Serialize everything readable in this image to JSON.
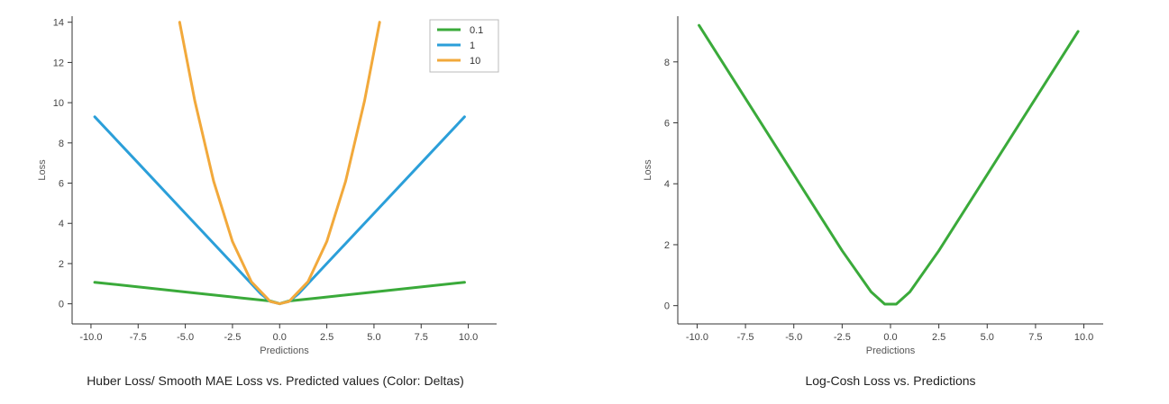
{
  "chart_data": [
    {
      "type": "line",
      "caption": "Huber Loss/ Smooth MAE Loss vs. Predicted values (Color: Deltas)",
      "xlabel": "Predictions",
      "ylabel": "Loss",
      "xlim": [
        -11.0,
        11.5
      ],
      "ylim": [
        -1.0,
        14.3
      ],
      "xticks": [
        -10.0,
        -7.5,
        -5.0,
        -2.5,
        0.0,
        2.5,
        5.0,
        7.5,
        10.0
      ],
      "xtick_labels": [
        "-10.0",
        "-7.5",
        "-5.0",
        "-2.5",
        "0.0",
        "2.5",
        "5.0",
        "7.5",
        "10.0"
      ],
      "yticks": [
        0,
        2,
        4,
        6,
        8,
        10,
        12,
        14
      ],
      "ytick_labels": [
        "0",
        "2",
        "4",
        "6",
        "8",
        "10",
        "12",
        "14"
      ],
      "grid": false,
      "legend": "top-right",
      "legend_entries": [
        "0.1",
        "1",
        "10"
      ],
      "series": [
        {
          "name": "0.1",
          "color": "#3aaa3a",
          "x": [
            -9.8,
            -5.0,
            -2.0,
            -0.5,
            -0.1,
            0.0,
            0.1,
            0.5,
            2.0,
            5.0,
            9.8
          ],
          "y": [
            1.07,
            0.59,
            0.29,
            0.14,
            0.04,
            0.0,
            0.04,
            0.14,
            0.29,
            0.59,
            1.07
          ]
        },
        {
          "name": "1",
          "color": "#2b9fd9",
          "x": [
            -9.8,
            -7.5,
            -5.0,
            -2.5,
            -1.0,
            -0.5,
            0.0,
            0.5,
            1.0,
            2.5,
            5.0,
            7.5,
            9.8
          ],
          "y": [
            9.3,
            7.0,
            4.5,
            2.0,
            0.5,
            0.12,
            0.0,
            0.12,
            0.5,
            2.0,
            4.5,
            7.0,
            9.3
          ]
        },
        {
          "name": "10",
          "color": "#f2a93b",
          "x": [
            -5.3,
            -4.5,
            -3.5,
            -2.5,
            -1.5,
            -0.5,
            0.0,
            0.5,
            1.5,
            2.5,
            3.5,
            4.5,
            5.3
          ],
          "y": [
            14.0,
            10.1,
            6.1,
            3.1,
            1.1,
            0.12,
            0.0,
            0.12,
            1.1,
            3.1,
            6.1,
            10.1,
            14.0
          ]
        }
      ]
    },
    {
      "type": "line",
      "caption": "Log-Cosh Loss vs. Predictions",
      "xlabel": "Predictions",
      "ylabel": "Loss",
      "xlim": [
        -11.0,
        11.0
      ],
      "ylim": [
        -0.6,
        9.5
      ],
      "xticks": [
        -10.0,
        -7.5,
        -5.0,
        -2.5,
        0.0,
        2.5,
        5.0,
        7.5,
        10.0
      ],
      "xtick_labels": [
        "-10.0",
        "-7.5",
        "-5.0",
        "-2.5",
        "0.0",
        "2.5",
        "5.0",
        "7.5",
        "10.0"
      ],
      "yticks": [
        0,
        2,
        4,
        6,
        8
      ],
      "ytick_labels": [
        "0",
        "2",
        "4",
        "6",
        "8"
      ],
      "grid": false,
      "series": [
        {
          "color": "#3aaa3a",
          "x": [
            -9.9,
            -7.5,
            -5.0,
            -2.5,
            -1.0,
            -0.3,
            0.3,
            1.0,
            2.5,
            5.0,
            7.5,
            9.7
          ],
          "y": [
            9.2,
            6.8,
            4.3,
            1.8,
            0.45,
            0.05,
            0.05,
            0.45,
            1.8,
            4.3,
            6.8,
            9.0
          ]
        }
      ]
    }
  ]
}
